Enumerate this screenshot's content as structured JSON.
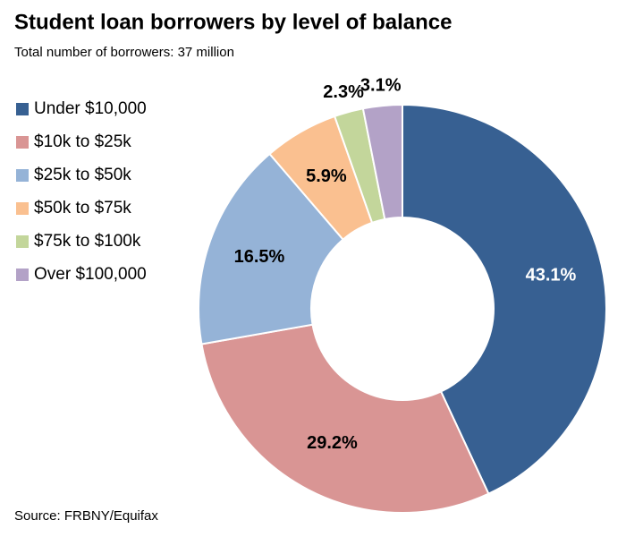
{
  "chart_data": {
    "type": "donut",
    "title": "Student loan borrowers by level of balance",
    "subtitle": "Total number of borrowers: 37 million",
    "source": "Source: FRBNY/Equifax",
    "categories": [
      "Under $10,000",
      "$10k to $25k",
      "$25k to $50k",
      "$50k to $75k",
      "$75k to $100k",
      "Over $100,000"
    ],
    "values": [
      43.1,
      29.2,
      16.5,
      5.9,
      2.3,
      3.1
    ],
    "value_labels": [
      "43.1%",
      "29.2%",
      "16.5%",
      "5.9%",
      "2.3%",
      "3.1%"
    ],
    "colors": [
      "#376092",
      "#d99594",
      "#95b3d7",
      "#fac090",
      "#c3d69b",
      "#b3a2c7"
    ],
    "legend": "left"
  }
}
